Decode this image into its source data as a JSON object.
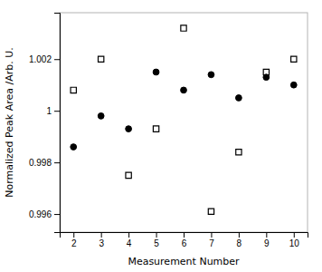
{
  "chart_data": {
    "type": "scatter",
    "xlabel": "Measurement Number",
    "ylabel": "Normalized Peak Area /Arb. U.",
    "x": [
      2,
      3,
      4,
      5,
      6,
      7,
      8,
      9,
      10
    ],
    "series": [
      {
        "values": [
          1.0008,
          1.002,
          0.9975,
          0.9993,
          1.0032,
          0.9961,
          0.9984,
          1.0015,
          1.002
        ],
        "marker": "square",
        "color": "#000000"
      },
      {
        "values": [
          0.9986,
          0.9998,
          0.9993,
          1.0015,
          1.0008,
          1.0014,
          1.0005,
          1.0013,
          1.001
        ],
        "marker": "circle",
        "color": "#000000"
      }
    ],
    "xlim": [
      1.5,
      10.5
    ],
    "xticks": [
      2,
      3,
      4,
      5,
      6,
      7,
      8,
      9,
      10
    ],
    "ylim": [
      0.9953,
      1.0038
    ],
    "yticks": [
      0.996,
      0.998,
      1,
      1.002
    ],
    "grid": false
  }
}
